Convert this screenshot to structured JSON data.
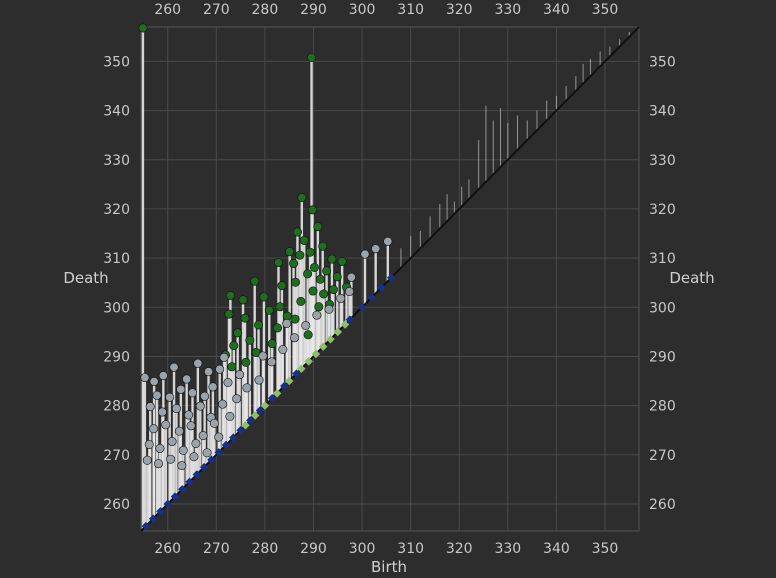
{
  "chart_data": {
    "type": "scatter",
    "title": "",
    "xlabel": "Birth",
    "ylabel": "Death",
    "xlim": [
      254.5,
      357
    ],
    "ylim": [
      254.5,
      357
    ],
    "xticks": [
      260,
      270,
      280,
      290,
      300,
      310,
      320,
      330,
      340,
      350
    ],
    "yticks": [
      260,
      270,
      280,
      290,
      300,
      310,
      320,
      330,
      340,
      350
    ],
    "grid": true,
    "colors": {
      "background": "#2d2d2d",
      "grid": "#4a4a4a",
      "stem": "#e8e8e8",
      "diagonal": "#101010",
      "green_point": "#1f6e1f",
      "gray_point": "#9aa2aa",
      "blue_point": "#1a2f8a",
      "light_green_point": "#8fbf6a"
    },
    "series": [
      {
        "marker": "sphere",
        "color": "#1f6e1f",
        "points": [
          [
            254.9,
            356.8
          ],
          [
            289.6,
            350.8
          ],
          [
            287.6,
            322.3
          ],
          [
            289.8,
            319.8
          ],
          [
            290.9,
            316.4
          ],
          [
            286.7,
            315.3
          ],
          [
            288.1,
            313.6
          ],
          [
            291.9,
            312.4
          ],
          [
            289.3,
            311.2
          ],
          [
            287.2,
            310.6
          ],
          [
            293.8,
            309.8
          ],
          [
            295.9,
            309.3
          ],
          [
            285.9,
            308.9
          ],
          [
            290.2,
            308.1
          ],
          [
            292.7,
            307.4
          ],
          [
            288.8,
            306.8
          ],
          [
            294.9,
            306.2
          ],
          [
            291.4,
            305.7
          ],
          [
            286.3,
            305.1
          ],
          [
            283.5,
            304.4
          ],
          [
            296.8,
            304.1
          ],
          [
            277.9,
            305.3
          ],
          [
            272.9,
            302.4
          ],
          [
            289.9,
            303.3
          ],
          [
            292.1,
            302.7
          ],
          [
            279.8,
            302.1
          ],
          [
            275.5,
            301.5
          ],
          [
            287.4,
            301.2
          ],
          [
            293.3,
            300.6
          ],
          [
            283.1,
            300.1
          ],
          [
            272.6,
            298.6
          ],
          [
            280.9,
            299.4
          ],
          [
            275.9,
            297.8
          ],
          [
            286.2,
            297.6
          ],
          [
            278.7,
            296.4
          ],
          [
            282.6,
            295.8
          ],
          [
            274.4,
            294.8
          ],
          [
            288.9,
            294.4
          ],
          [
            276.9,
            293.3
          ],
          [
            281.5,
            292.6
          ],
          [
            273.6,
            292.2
          ],
          [
            278.2,
            290.8
          ],
          [
            271.9,
            290.3
          ],
          [
            276.1,
            288.8
          ],
          [
            273.2,
            287.9
          ],
          [
            282.8,
            309.1
          ],
          [
            285.1,
            311.3
          ],
          [
            294.1,
            303.6
          ],
          [
            291.1,
            300.1
          ],
          [
            284.6,
            298.2
          ]
        ]
      },
      {
        "marker": "sphere",
        "color": "#9aa2aa",
        "points": [
          [
            255.3,
            285.7
          ],
          [
            257.2,
            284.9
          ],
          [
            259.1,
            286.1
          ],
          [
            261.3,
            287.8
          ],
          [
            263.9,
            285.4
          ],
          [
            266.2,
            288.6
          ],
          [
            268.4,
            286.9
          ],
          [
            270.7,
            287.4
          ],
          [
            257.8,
            282.1
          ],
          [
            260.4,
            281.7
          ],
          [
            262.7,
            283.3
          ],
          [
            265.1,
            282.6
          ],
          [
            267.6,
            281.9
          ],
          [
            269.3,
            283.8
          ],
          [
            272.4,
            284.7
          ],
          [
            256.4,
            279.8
          ],
          [
            258.9,
            278.7
          ],
          [
            261.8,
            279.4
          ],
          [
            264.3,
            278.1
          ],
          [
            266.7,
            279.9
          ],
          [
            268.9,
            277.6
          ],
          [
            271.3,
            280.3
          ],
          [
            274.2,
            281.4
          ],
          [
            257.1,
            275.3
          ],
          [
            259.6,
            276.1
          ],
          [
            262.4,
            274.8
          ],
          [
            264.8,
            275.9
          ],
          [
            267.3,
            273.9
          ],
          [
            269.6,
            276.4
          ],
          [
            272.8,
            277.8
          ],
          [
            256.2,
            272.1
          ],
          [
            258.4,
            271.3
          ],
          [
            260.9,
            272.7
          ],
          [
            263.2,
            270.9
          ],
          [
            265.8,
            272.3
          ],
          [
            268.1,
            270.4
          ],
          [
            270.5,
            273.6
          ],
          [
            255.8,
            268.9
          ],
          [
            258.1,
            268.2
          ],
          [
            260.6,
            269.1
          ],
          [
            262.9,
            267.8
          ],
          [
            265.4,
            269.6
          ],
          [
            276.3,
            283.6
          ],
          [
            278.8,
            285.2
          ],
          [
            281.4,
            288.9
          ],
          [
            283.7,
            291.4
          ],
          [
            286.1,
            293.8
          ],
          [
            288.4,
            296.3
          ],
          [
            290.7,
            298.4
          ],
          [
            293.2,
            299.6
          ],
          [
            295.6,
            301.8
          ],
          [
            297.4,
            303.2
          ],
          [
            300.6,
            310.8
          ],
          [
            302.8,
            311.9
          ],
          [
            305.3,
            313.4
          ],
          [
            297.8,
            306.1
          ],
          [
            284.5,
            296.7
          ],
          [
            279.6,
            290.1
          ],
          [
            274.8,
            286.3
          ],
          [
            271.6,
            289.8
          ]
        ]
      },
      {
        "marker": "diamond",
        "color": "#1a2f8a",
        "points": [
          [
            255.5,
            255.5
          ],
          [
            257.0,
            257.0
          ],
          [
            258.5,
            258.5
          ],
          [
            260.0,
            260.0
          ],
          [
            261.5,
            261.5
          ],
          [
            263.0,
            263.0
          ],
          [
            264.5,
            264.5
          ],
          [
            266.0,
            266.0
          ],
          [
            267.5,
            267.5
          ],
          [
            269.0,
            269.0
          ],
          [
            270.5,
            270.5
          ],
          [
            272.0,
            272.0
          ],
          [
            273.5,
            273.5
          ],
          [
            275.0,
            275.0
          ],
          [
            277.0,
            277.0
          ],
          [
            279.0,
            279.0
          ],
          [
            281.5,
            281.5
          ],
          [
            284.0,
            284.0
          ],
          [
            286.5,
            286.5
          ],
          [
            297.5,
            297.5
          ],
          [
            300.0,
            300.0
          ],
          [
            302.0,
            302.0
          ],
          [
            304.0,
            304.0
          ],
          [
            306.0,
            306.0
          ]
        ]
      },
      {
        "marker": "diamond",
        "color": "#8fbf6a",
        "points": [
          [
            276.0,
            276.0
          ],
          [
            278.0,
            278.0
          ],
          [
            280.0,
            280.0
          ],
          [
            282.5,
            282.5
          ],
          [
            285.0,
            285.0
          ],
          [
            287.5,
            287.5
          ],
          [
            289.0,
            289.0
          ],
          [
            290.5,
            290.5
          ],
          [
            292.0,
            292.0
          ],
          [
            293.5,
            293.5
          ],
          [
            295.0,
            295.0
          ],
          [
            296.5,
            296.5
          ]
        ]
      },
      {
        "marker": "none",
        "color": "#e8e8e8",
        "points": [
          [
            308.0,
            312.0
          ],
          [
            310.0,
            314.5
          ],
          [
            312.0,
            315.5
          ],
          [
            314.0,
            318.5
          ],
          [
            316.0,
            321.0
          ],
          [
            317.5,
            323.0
          ],
          [
            319.0,
            321.5
          ],
          [
            320.5,
            324.5
          ],
          [
            322.0,
            326.0
          ],
          [
            324.0,
            334.0
          ],
          [
            325.5,
            341.0
          ],
          [
            327.0,
            338.0
          ],
          [
            328.5,
            340.5
          ],
          [
            330.0,
            337.5
          ],
          [
            332.0,
            339.0
          ],
          [
            334.0,
            338.0
          ],
          [
            336.0,
            340.0
          ],
          [
            338.0,
            342.0
          ],
          [
            340.0,
            343.0
          ],
          [
            342.0,
            345.0
          ],
          [
            344.0,
            347.0
          ],
          [
            345.5,
            349.5
          ],
          [
            347.0,
            350.5
          ],
          [
            349.0,
            352.0
          ],
          [
            351.0,
            353.0
          ],
          [
            353.0,
            354.5
          ],
          [
            355.0,
            356.0
          ]
        ]
      }
    ]
  }
}
